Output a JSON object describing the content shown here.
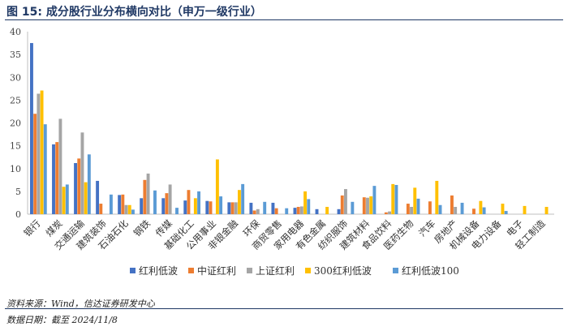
{
  "figure": {
    "title": "图 15:  成分股行业分布横向对比（申万一级行业）",
    "source": "资料来源：Wind，信达证券研发中心",
    "date": "数据日期：截至 2024/11/8"
  },
  "chart_data": {
    "type": "bar",
    "categories": [
      "银行",
      "煤炭",
      "交通运输",
      "建筑装饰",
      "石油石化",
      "钢铁",
      "传媒",
      "基础化工",
      "公用事业",
      "非银金融",
      "环保",
      "商贸零售",
      "家用电器",
      "有色金属",
      "纺织服饰",
      "建筑材料",
      "食品饮料",
      "医药生物",
      "汽车",
      "房地产",
      "机械设备",
      "电力设备",
      "电子",
      "轻工制造"
    ],
    "ylim": [
      0,
      40
    ],
    "yticks": [
      0,
      5,
      10,
      15,
      20,
      25,
      30,
      35,
      40
    ],
    "grid": false,
    "legend_position": "bottom",
    "series": [
      {
        "name": "红利低波",
        "color": "#4472c4",
        "values": [
          37.5,
          15.3,
          11.2,
          7.3,
          4.2,
          3.5,
          3.5,
          3.0,
          2.9,
          2.6,
          2.5,
          2.5,
          1.4,
          1.1,
          1.1,
          0,
          0,
          0,
          0,
          0,
          0,
          0,
          0,
          0
        ]
      },
      {
        "name": "中证红利",
        "color": "#ed7d31",
        "values": [
          22.0,
          15.8,
          12.2,
          2.3,
          4.3,
          7.5,
          4.6,
          5.3,
          2.8,
          2.6,
          0.8,
          1.3,
          1.6,
          0,
          4.1,
          3.7,
          0.4,
          2.3,
          2.8,
          4.1,
          1.2,
          0,
          0,
          0
        ]
      },
      {
        "name": "上证红利",
        "color": "#a5a5a5",
        "values": [
          26.4,
          20.9,
          17.9,
          0,
          2.0,
          8.9,
          6.5,
          0,
          0,
          2.6,
          1.1,
          0,
          1.7,
          0,
          5.5,
          3.6,
          0.6,
          1.6,
          0,
          1.6,
          0,
          0,
          0,
          0
        ]
      },
      {
        "name": "300红利低波",
        "color": "#ffc000",
        "values": [
          27.1,
          6.0,
          7.0,
          0,
          2.0,
          0,
          0,
          3.5,
          12.0,
          5.3,
          0,
          0,
          5.0,
          1.6,
          0,
          3.9,
          6.6,
          5.8,
          7.3,
          0,
          2.9,
          2.3,
          1.8,
          1.6
        ]
      },
      {
        "name": "红利低波100",
        "color": "#5b9bd5",
        "values": [
          19.7,
          6.5,
          13.1,
          4.3,
          1.0,
          5.2,
          1.4,
          5.0,
          3.9,
          6.6,
          2.7,
          1.3,
          3.3,
          0,
          2.7,
          6.2,
          6.4,
          3.4,
          2.0,
          2.5,
          1.5,
          0.7,
          0,
          0
        ]
      }
    ]
  }
}
